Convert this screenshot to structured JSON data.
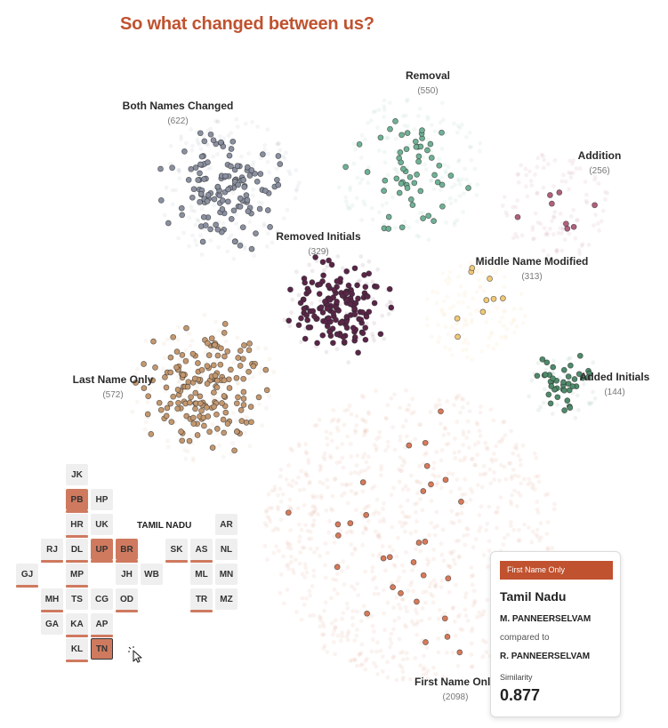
{
  "page": {
    "title": "So what changed between us?"
  },
  "chart_data": {
    "type": "scatter",
    "title": "So what changed between us?",
    "clusters": [
      {
        "key": "both",
        "name": "Both Names Changed",
        "count": "(622)",
        "color": "#8a90a0"
      },
      {
        "key": "removal",
        "name": "Removal",
        "count": "(550)",
        "color": "#6fb195"
      },
      {
        "key": "addition",
        "name": "Addition",
        "count": "(256)",
        "color": "#b0607d"
      },
      {
        "key": "initials",
        "name": "Removed Initials",
        "count": "(329)",
        "color": "#5a2548"
      },
      {
        "key": "middle",
        "name": "Middle Name Modified",
        "count": "(313)",
        "color": "#f1c878"
      },
      {
        "key": "last",
        "name": "Last Name Only",
        "count": "(572)",
        "color": "#c4986f"
      },
      {
        "key": "added",
        "name": "Added Initials",
        "count": "(144)",
        "color": "#4f8a6a"
      },
      {
        "key": "first",
        "name": "First Name Only",
        "count": "(2098)",
        "color": "#d77a5a"
      }
    ]
  },
  "state_grid": {
    "title": "TAMIL NADU",
    "tiles": [
      {
        "code": "JK",
        "level": "low",
        "bar": 0
      },
      {
        "code": "PB",
        "level": "high",
        "bar": 1
      },
      {
        "code": "HP",
        "level": "low",
        "bar": 0
      },
      {
        "code": "HR",
        "level": "low",
        "bar": 1
      },
      {
        "code": "UK",
        "level": "low",
        "bar": 0
      },
      {
        "code": "RJ",
        "level": "low",
        "bar": 1
      },
      {
        "code": "DL",
        "level": "low",
        "bar": 1
      },
      {
        "code": "UP",
        "level": "high",
        "bar": 1
      },
      {
        "code": "BR",
        "level": "high",
        "bar": 1
      },
      {
        "code": "SK",
        "level": "low",
        "bar": 1
      },
      {
        "code": "AS",
        "level": "low",
        "bar": 1
      },
      {
        "code": "NL",
        "level": "low",
        "bar": 0
      },
      {
        "code": "AR",
        "level": "low",
        "bar": 0
      },
      {
        "code": "GJ",
        "level": "low",
        "bar": 1
      },
      {
        "code": "MP",
        "level": "low",
        "bar": 1
      },
      {
        "code": "JH",
        "level": "low",
        "bar": 0
      },
      {
        "code": "WB",
        "level": "low",
        "bar": 0
      },
      {
        "code": "ML",
        "level": "low",
        "bar": 0
      },
      {
        "code": "MN",
        "level": "low",
        "bar": 0
      },
      {
        "code": "MH",
        "level": "low",
        "bar": 1
      },
      {
        "code": "TS",
        "level": "low",
        "bar": 0
      },
      {
        "code": "CG",
        "level": "low",
        "bar": 0
      },
      {
        "code": "OD",
        "level": "low",
        "bar": 1
      },
      {
        "code": "TR",
        "level": "low",
        "bar": 1
      },
      {
        "code": "MZ",
        "level": "low",
        "bar": 0
      },
      {
        "code": "GA",
        "level": "low",
        "bar": 0
      },
      {
        "code": "KA",
        "level": "low",
        "bar": 1
      },
      {
        "code": "AP",
        "level": "low",
        "bar": 1
      },
      {
        "code": "KL",
        "level": "low",
        "bar": 1
      },
      {
        "code": "TN",
        "level": "high",
        "bar": 0,
        "selected": true
      }
    ]
  },
  "tooltip": {
    "category": "First Name Only",
    "state": "Tamil Nadu",
    "name_a": "M. PANNEERSELVAM",
    "compared_label": "compared to",
    "name_b": "R. PANNEERSELVAM",
    "similarity_label": "Similarity",
    "similarity": "0.877"
  }
}
